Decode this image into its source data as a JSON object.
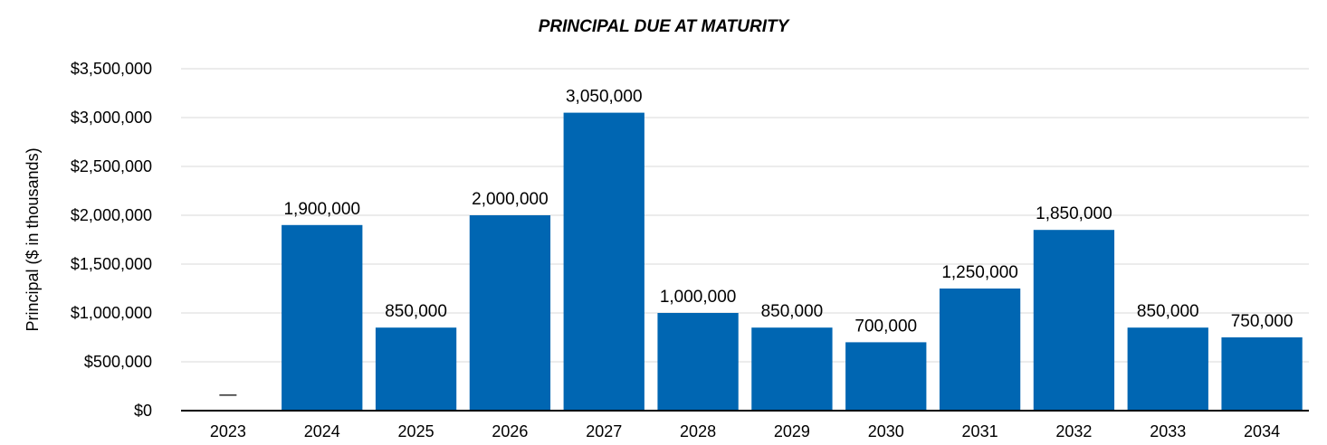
{
  "chart_data": {
    "type": "bar",
    "title": "PRINCIPAL DUE AT MATURITY",
    "xlabel": "",
    "ylabel": "Principal ($ in thousands)",
    "ylim": [
      0,
      3500000
    ],
    "yticks": [
      {
        "value": 0,
        "label": "$0"
      },
      {
        "value": 500000,
        "label": "$500,000"
      },
      {
        "value": 1000000,
        "label": "$1,000,000"
      },
      {
        "value": 1500000,
        "label": "$1,500,000"
      },
      {
        "value": 2000000,
        "label": "$2,000,000"
      },
      {
        "value": 2500000,
        "label": "$2,500,000"
      },
      {
        "value": 3000000,
        "label": "$3,000,000"
      },
      {
        "value": 3500000,
        "label": "$3,500,000"
      }
    ],
    "grid": true,
    "bar_color": "#0066b2",
    "categories": [
      "2023",
      "2024",
      "2025",
      "2026",
      "2027",
      "2028",
      "2029",
      "2030",
      "2031",
      "2032",
      "2033",
      "2034"
    ],
    "values": [
      0,
      1900000,
      850000,
      2000000,
      3050000,
      1000000,
      850000,
      700000,
      1250000,
      1850000,
      850000,
      750000
    ],
    "data_labels": [
      "—",
      "1,900,000",
      "850,000",
      "2,000,000",
      "3,050,000",
      "1,000,000",
      "850,000",
      "700,000",
      "1,250,000",
      "1,850,000",
      "850,000",
      "750,000"
    ]
  }
}
